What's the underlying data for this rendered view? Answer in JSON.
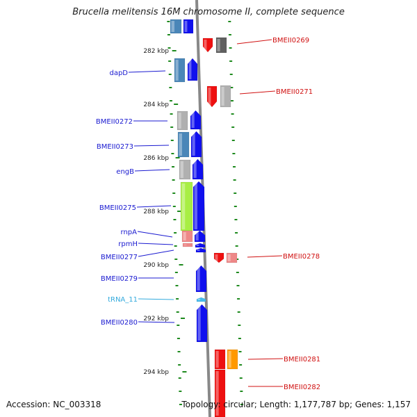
{
  "title": "Brucella melitensis 16M chromosome II, complete sequence",
  "accession": "Accession: NC_003318",
  "topology": "Topology: circular; Length: 1,177,787 bp; Genes: 1,157",
  "colors": {
    "blue_label": "#1a1ad0",
    "red_label": "#d01010",
    "trna_label": "#33aadd",
    "tick": "#1e8a1e",
    "backbone": "#888888",
    "gene_blue": "#1010ee",
    "gene_steel": "#4a86b8",
    "gene_gray": "#b0b0b0",
    "gene_dark_gray": "#606060",
    "gene_red": "#ee1010",
    "gene_pink": "#ee8888",
    "gene_green": "#a8ee44",
    "gene_orange": "#ff9900",
    "gene_cyan": "#44bbee"
  },
  "scale_labels": [
    {
      "kbp": 282,
      "text": "282 kbp"
    },
    {
      "kbp": 284,
      "text": "284 kbp"
    },
    {
      "kbp": 286,
      "text": "286 kbp"
    },
    {
      "kbp": 288,
      "text": "288 kbp"
    },
    {
      "kbp": 290,
      "text": "290 kbp"
    },
    {
      "kbp": 292,
      "text": "292 kbp"
    },
    {
      "kbp": 294,
      "text": "294 kbp"
    }
  ],
  "features": [
    {
      "label": "dapD",
      "side": "left",
      "color": "blue_label",
      "start_kbp": 282.1,
      "end_kbp": 282.9
    },
    {
      "label": "BMEII0272",
      "side": "left",
      "color": "blue_label",
      "start_kbp": 284.3,
      "end_kbp": 285.0
    },
    {
      "label": "BMEII0273",
      "side": "left",
      "color": "blue_label",
      "start_kbp": 285.0,
      "end_kbp": 286.0
    },
    {
      "label": "engB",
      "side": "left",
      "color": "blue_label",
      "start_kbp": 286.0,
      "end_kbp": 286.7
    },
    {
      "label": "BMEII0275",
      "side": "left",
      "color": "blue_label",
      "start_kbp": 286.8,
      "end_kbp": 288.8
    },
    {
      "label": "rnpA",
      "side": "left",
      "color": "blue_label",
      "start_kbp": 288.8,
      "end_kbp": 289.2
    },
    {
      "label": "rpmH",
      "side": "left",
      "color": "blue_label",
      "start_kbp": 289.25,
      "end_kbp": 289.4
    },
    {
      "label": "BMEII0277",
      "side": "left",
      "color": "blue_label",
      "start_kbp": 289.45,
      "end_kbp": 289.65
    },
    {
      "label": "BMEII0279",
      "side": "left",
      "color": "blue_label",
      "start_kbp": 290.1,
      "end_kbp": 291.1
    },
    {
      "label": "tRNA_11",
      "side": "left",
      "color": "trna_label",
      "start_kbp": 291.5,
      "end_kbp": 291.6
    },
    {
      "label": "BMEII0280",
      "side": "left",
      "color": "blue_label",
      "start_kbp": 292.0,
      "end_kbp": 293.4
    },
    {
      "label": "BMEII0269",
      "side": "right",
      "color": "red_label",
      "start_kbp": 281.4,
      "end_kbp": 282.0
    },
    {
      "label": "BMEII0271",
      "side": "right",
      "color": "red_label",
      "start_kbp": 283.3,
      "end_kbp": 284.2
    },
    {
      "label": "BMEII0278",
      "side": "right",
      "color": "red_label",
      "start_kbp": 289.7,
      "end_kbp": 290.1
    },
    {
      "label": "BMEII0281",
      "side": "right",
      "color": "red_label",
      "start_kbp": 293.9,
      "end_kbp": 294.6
    },
    {
      "label": "BMEII0282",
      "side": "right",
      "color": "red_label",
      "start_kbp": 294.7,
      "end_kbp": 296.0
    }
  ]
}
